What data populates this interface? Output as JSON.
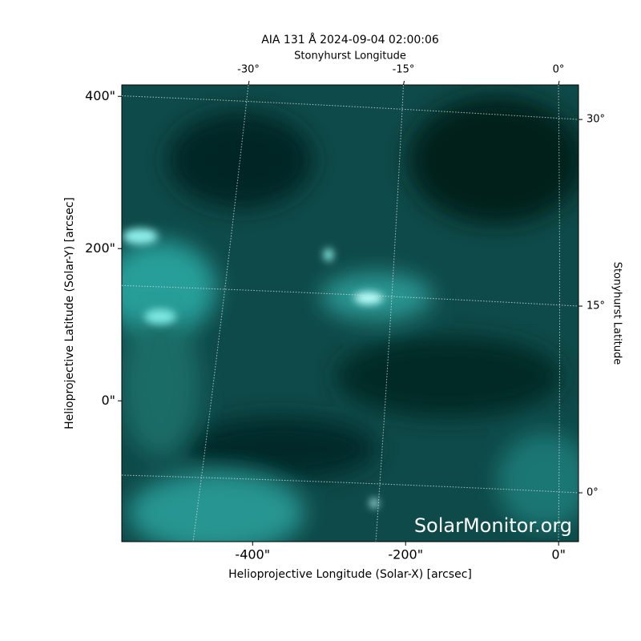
{
  "chart_data": {
    "type": "image",
    "title": "AIA 131 Å 2024-09-04 02:00:06",
    "x_label": "Helioprojective Longitude (Solar-X) [arcsec]",
    "y_label": "Helioprojective Latitude (Solar-Y) [arcsec]",
    "top_label": "Stonyhurst Longitude",
    "right_label": "Stonyhurst Latitude",
    "watermark": "SolarMonitor.org",
    "xlim": [
      -571,
      26
    ],
    "ylim": [
      -185,
      415
    ],
    "xticks": [
      {
        "value": -400,
        "label": "-400\""
      },
      {
        "value": -200,
        "label": "-200\""
      },
      {
        "value": 0,
        "label": "0\""
      }
    ],
    "yticks": [
      {
        "value": 0,
        "label": "0\""
      },
      {
        "value": 200,
        "label": "200\""
      },
      {
        "value": 400,
        "label": "400\""
      }
    ],
    "lon_ticks": [
      {
        "value": -30,
        "label": "-30°"
      },
      {
        "value": -15,
        "label": "-15°"
      },
      {
        "value": 0,
        "label": "0°"
      }
    ],
    "lat_ticks": [
      {
        "value": 0,
        "label": "0°"
      },
      {
        "value": 15,
        "label": "15°"
      },
      {
        "value": 30,
        "label": "30°"
      }
    ],
    "grid": true
  }
}
